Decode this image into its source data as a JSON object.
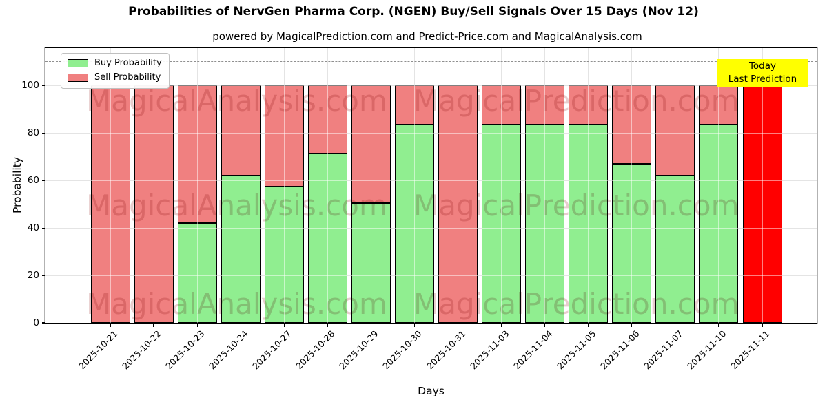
{
  "watermarks": {
    "left": "MagicalAnalysis.com",
    "right": "MagicalPrediction.com"
  },
  "chart_data": {
    "type": "bar",
    "stacked": true,
    "title": "Probabilities of NervGen Pharma Corp. (NGEN) Buy/Sell Signals Over 15 Days (Nov 12)",
    "subtitle": "powered by MagicalPrediction.com and Predict-Price.com and MagicalAnalysis.com",
    "xlabel": "Days",
    "ylabel": "Probability",
    "categories": [
      "2025-10-21",
      "2025-10-22",
      "2025-10-23",
      "2025-10-24",
      "2025-10-27",
      "2025-10-28",
      "2025-10-29",
      "2025-10-30",
      "2025-10-31",
      "2025-11-03",
      "2025-11-04",
      "2025-11-05",
      "2025-11-06",
      "2025-11-07",
      "2025-11-10",
      "2025-11-11"
    ],
    "series": [
      {
        "name": "Buy Probability",
        "color": "#90EE90",
        "values": [
          0,
          0,
          42,
          62,
          57.5,
          71.5,
          50.5,
          83.5,
          0,
          83.5,
          83.5,
          83.5,
          67,
          62,
          83.5,
          0
        ]
      },
      {
        "name": "Sell Probability",
        "color": "#F08080",
        "values": [
          100,
          100,
          58,
          38,
          42.5,
          28.5,
          49.5,
          16.5,
          100,
          16.5,
          16.5,
          16.5,
          33,
          38,
          16.5,
          100
        ]
      }
    ],
    "today_bar": {
      "index": 15,
      "color": "#FF0000"
    },
    "annotation": {
      "line1": "Today",
      "line2": "Last Prediction"
    },
    "ylim": [
      0,
      115.8
    ],
    "yticks": [
      0,
      20,
      40,
      60,
      80,
      100
    ],
    "dashed_line_y": 110,
    "grid": true,
    "legend_position": "upper left",
    "bar_edge_color": "#000000",
    "annotation_bg": "#FFFF00"
  }
}
